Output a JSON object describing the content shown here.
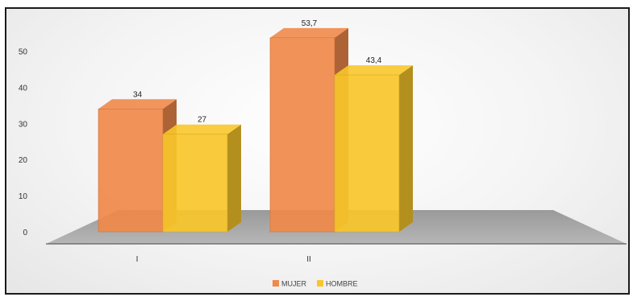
{
  "chart_data": {
    "type": "bar",
    "categories": [
      "I",
      "II"
    ],
    "series": [
      {
        "name": "MUJER",
        "values": [
          34,
          53.7
        ],
        "labels": [
          "34",
          "53,7"
        ],
        "color": "#F0894A"
      },
      {
        "name": "HOMBRE",
        "values": [
          27,
          43.4
        ],
        "labels": [
          "27",
          "43,4"
        ],
        "color": "#F9C62A"
      }
    ],
    "y_ticks": [
      "0",
      "10",
      "20",
      "30",
      "40",
      "50"
    ],
    "ylim": [
      0,
      55
    ],
    "legend_position": "bottom",
    "grid": false,
    "style": "3d-clustered-column"
  }
}
